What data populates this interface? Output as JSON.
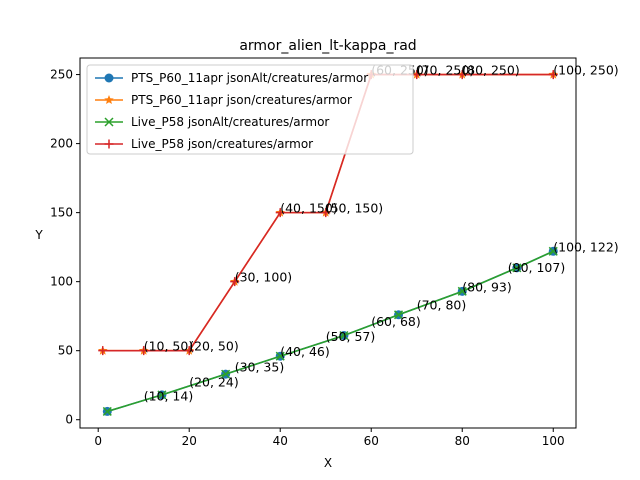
{
  "chart_data": {
    "type": "line",
    "title": "armor_alien_lt-kappa_rad",
    "xlabel": "X",
    "ylabel": "Y",
    "xlim": [
      -4,
      105
    ],
    "ylim": [
      -6,
      262
    ],
    "xticks": [
      0,
      20,
      40,
      60,
      80,
      100
    ],
    "yticks": [
      0,
      50,
      100,
      150,
      200,
      250
    ],
    "grid": false,
    "legend_position": "upper-left",
    "series": [
      {
        "name": "PTS_P60_11apr jsonAlt/creatures/armor",
        "color": "#1f77b4",
        "marker": "circle",
        "x": [
          2,
          14,
          28,
          40,
          54,
          66,
          80,
          92,
          100
        ],
        "y": [
          6,
          18,
          33,
          46,
          61,
          76,
          93,
          110,
          122
        ]
      },
      {
        "name": "PTS_P60_11apr json/creatures/armor",
        "color": "#ff7f0e",
        "marker": "star",
        "x": [
          1,
          10,
          20,
          30,
          40,
          50,
          60,
          70,
          80,
          100
        ],
        "y": [
          50,
          50,
          50,
          100,
          150,
          150,
          250,
          250,
          250,
          250
        ]
      },
      {
        "name": "Live_P58 jsonAlt/creatures/armor",
        "color": "#2ca02c",
        "marker": "x",
        "x": [
          2,
          14,
          28,
          40,
          54,
          66,
          80,
          92,
          100
        ],
        "y": [
          6,
          18,
          33,
          46,
          61,
          76,
          93,
          110,
          122
        ]
      },
      {
        "name": "Live_P58 json/creatures/armor",
        "color": "#d62728",
        "marker": "plus",
        "x": [
          1,
          10,
          20,
          30,
          40,
          50,
          60,
          70,
          80,
          100
        ],
        "y": [
          50,
          50,
          50,
          100,
          150,
          150,
          250,
          250,
          250,
          250
        ]
      }
    ],
    "annotations": [
      {
        "text": "(10, 14)",
        "x": 10,
        "y": 14
      },
      {
        "text": "(20, 24)",
        "x": 20,
        "y": 24
      },
      {
        "text": "(30, 35)",
        "x": 30,
        "y": 35
      },
      {
        "text": "(40, 46)",
        "x": 40,
        "y": 46
      },
      {
        "text": "(50, 57)",
        "x": 50,
        "y": 57
      },
      {
        "text": "(60, 68)",
        "x": 60,
        "y": 68
      },
      {
        "text": "(70, 80)",
        "x": 70,
        "y": 80
      },
      {
        "text": "(80, 93)",
        "x": 80,
        "y": 93
      },
      {
        "text": "(90, 107)",
        "x": 90,
        "y": 107
      },
      {
        "text": "(100, 122)",
        "x": 100,
        "y": 122
      },
      {
        "text": "(10, 50)",
        "x": 10,
        "y": 50
      },
      {
        "text": "(20, 50)",
        "x": 20,
        "y": 50
      },
      {
        "text": "(30, 100)",
        "x": 30,
        "y": 100
      },
      {
        "text": "(40, 150)",
        "x": 40,
        "y": 150
      },
      {
        "text": "(50, 150)",
        "x": 50,
        "y": 150
      },
      {
        "text": "(60, 250)",
        "x": 60,
        "y": 250
      },
      {
        "text": "(70, 250)",
        "x": 70,
        "y": 250
      },
      {
        "text": "(80, 250)",
        "x": 80,
        "y": 250
      },
      {
        "text": "(100, 250)",
        "x": 100,
        "y": 250
      }
    ]
  }
}
